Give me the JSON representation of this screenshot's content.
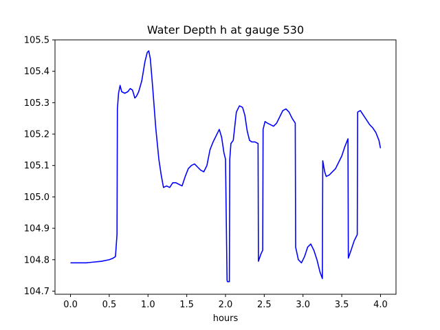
{
  "chart_data": {
    "type": "line",
    "title": "Water Depth h at gauge 530",
    "xlabel": "hours",
    "ylabel": "",
    "xlim": [
      -0.2,
      4.2
    ],
    "ylim": [
      104.69,
      105.5
    ],
    "xticks": [
      "0.0",
      "0.5",
      "1.0",
      "1.5",
      "2.0",
      "2.5",
      "3.0",
      "3.5",
      "4.0"
    ],
    "yticks": [
      "104.7",
      "104.8",
      "104.9",
      "105.0",
      "105.1",
      "105.2",
      "105.3",
      "105.4",
      "105.5"
    ],
    "grid": false,
    "line_color": "#0000ff",
    "series": [
      {
        "x": [
          0.0,
          0.2,
          0.4,
          0.5,
          0.55,
          0.58,
          0.6,
          0.605,
          0.62,
          0.64,
          0.66,
          0.7,
          0.74,
          0.77,
          0.8,
          0.83,
          0.85,
          0.88,
          0.92,
          0.96,
          0.99,
          1.01,
          1.03,
          1.06,
          1.1,
          1.14,
          1.17,
          1.2,
          1.24,
          1.28,
          1.32,
          1.36,
          1.4,
          1.44,
          1.48,
          1.52,
          1.56,
          1.6,
          1.64,
          1.68,
          1.72,
          1.76,
          1.8,
          1.84,
          1.88,
          1.92,
          1.95,
          1.98,
          2.0,
          2.02,
          2.025,
          2.05,
          2.055,
          2.07,
          2.1,
          2.12,
          2.14,
          2.18,
          2.22,
          2.25,
          2.28,
          2.31,
          2.34,
          2.38,
          2.42,
          2.425,
          2.46,
          2.48,
          2.485,
          2.51,
          2.54,
          2.58,
          2.62,
          2.66,
          2.7,
          2.74,
          2.78,
          2.82,
          2.86,
          2.9,
          2.905,
          2.94,
          2.98,
          3.02,
          3.06,
          3.1,
          3.14,
          3.18,
          3.22,
          3.25,
          3.255,
          3.28,
          3.3,
          3.34,
          3.38,
          3.42,
          3.46,
          3.5,
          3.54,
          3.58,
          3.585,
          3.62,
          3.66,
          3.7,
          3.705,
          3.74,
          3.78,
          3.82,
          3.86,
          3.9,
          3.94,
          3.98,
          4.0
        ],
        "y": [
          104.79,
          104.79,
          104.795,
          104.8,
          104.805,
          104.81,
          104.88,
          105.28,
          105.33,
          105.355,
          105.335,
          105.33,
          105.335,
          105.345,
          105.34,
          105.315,
          105.32,
          105.335,
          105.37,
          105.43,
          105.46,
          105.465,
          105.44,
          105.35,
          105.22,
          105.12,
          105.07,
          105.03,
          105.035,
          105.03,
          105.045,
          105.045,
          105.04,
          105.035,
          105.065,
          105.09,
          105.1,
          105.105,
          105.095,
          105.085,
          105.08,
          105.1,
          105.15,
          105.175,
          105.195,
          105.215,
          105.19,
          105.14,
          105.12,
          104.735,
          104.73,
          104.73,
          105.12,
          105.17,
          105.18,
          105.225,
          105.27,
          105.29,
          105.285,
          105.26,
          105.21,
          105.18,
          105.175,
          105.175,
          105.17,
          104.795,
          104.82,
          104.83,
          105.215,
          105.24,
          105.235,
          105.23,
          105.225,
          105.235,
          105.255,
          105.275,
          105.28,
          105.27,
          105.25,
          105.235,
          104.84,
          104.8,
          104.79,
          104.81,
          104.84,
          104.85,
          104.83,
          104.8,
          104.76,
          104.74,
          105.115,
          105.08,
          105.065,
          105.07,
          105.08,
          105.09,
          105.11,
          105.13,
          105.16,
          105.185,
          104.805,
          104.83,
          104.86,
          104.88,
          105.27,
          105.275,
          105.26,
          105.245,
          105.23,
          105.22,
          105.205,
          105.18,
          105.155
        ]
      }
    ]
  }
}
